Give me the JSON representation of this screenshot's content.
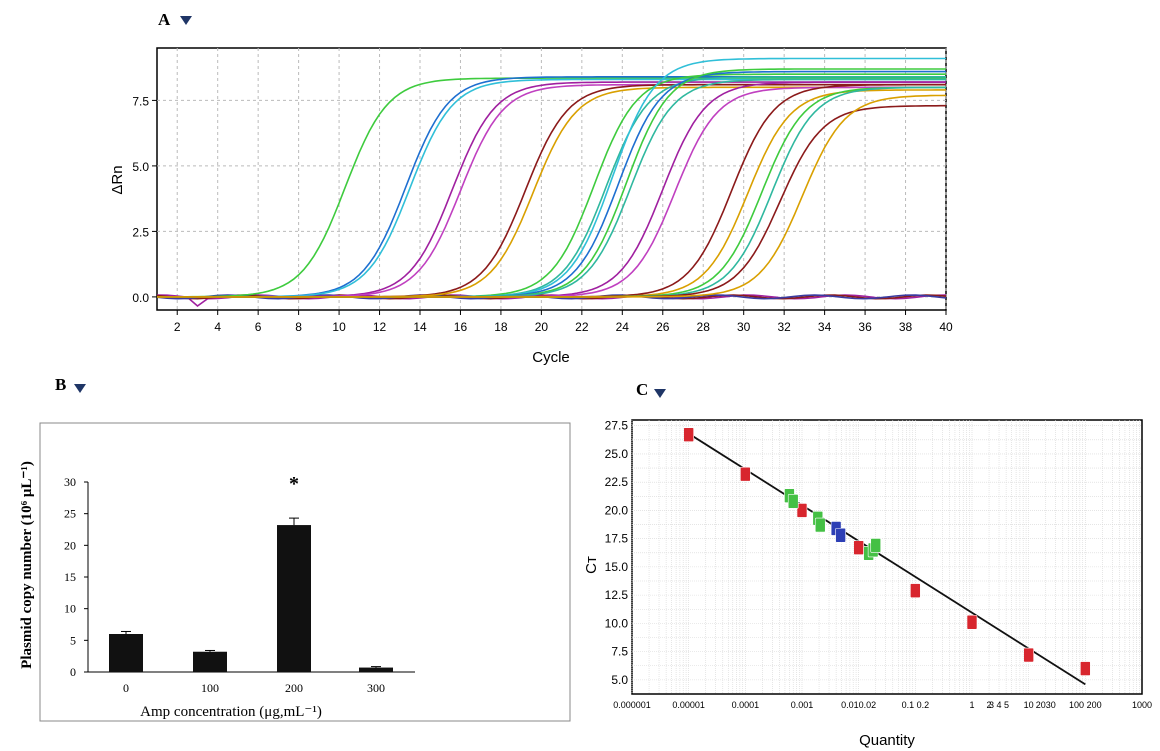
{
  "panel_labels": {
    "a": "A",
    "b": "B",
    "c": "C"
  },
  "colors": {
    "arrow": "#1f3566",
    "bar": "#111111",
    "fit_line": "#111111"
  },
  "chart_data": [
    {
      "id": "A",
      "type": "line",
      "xlabel": "Cycle",
      "ylabel": "ΔRn",
      "xlim": [
        1,
        40
      ],
      "ylim": [
        -0.5,
        9.5
      ],
      "x_ticks": [
        "2",
        "4",
        "6",
        "8",
        "10",
        "12",
        "14",
        "16",
        "18",
        "20",
        "22",
        "24",
        "26",
        "28",
        "30",
        "32",
        "34",
        "36",
        "38",
        "40"
      ],
      "y_ticks": [
        "0.0",
        "2.5",
        "5.0",
        "7.5"
      ],
      "grid": true,
      "series": [
        {
          "color": "#3ecb3e",
          "ct": 10.3,
          "plateau": 8.35
        },
        {
          "color": "#1e6fd0",
          "ct": 13.3,
          "plateau": 8.4
        },
        {
          "color": "#30bfd8",
          "ct": 13.5,
          "plateau": 8.3
        },
        {
          "color": "#a020a0",
          "ct": 15.6,
          "plateau": 8.2
        },
        {
          "color": "#c040c0",
          "ct": 16.0,
          "plateau": 8.1
        },
        {
          "color": "#8b1a1a",
          "ct": 19.2,
          "plateau": 8.1
        },
        {
          "color": "#d9a000",
          "ct": 19.6,
          "plateau": 8.0
        },
        {
          "color": "#3ecb3e",
          "ct": 22.6,
          "plateau": 8.5
        },
        {
          "color": "#2fb89f",
          "ct": 23.2,
          "plateau": 8.4
        },
        {
          "color": "#30bfd8",
          "ct": 23.5,
          "plateau": 9.1
        },
        {
          "color": "#1e6fd0",
          "ct": 23.8,
          "plateau": 8.6
        },
        {
          "color": "#3ecb3e",
          "ct": 24.2,
          "plateau": 8.7
        },
        {
          "color": "#2fb89f",
          "ct": 24.4,
          "plateau": 8.3
        },
        {
          "color": "#a020a0",
          "ct": 26.0,
          "plateau": 8.2
        },
        {
          "color": "#c040c0",
          "ct": 26.6,
          "plateau": 8.0
        },
        {
          "color": "#8b1a1a",
          "ct": 29.4,
          "plateau": 8.1
        },
        {
          "color": "#d9a000",
          "ct": 30.2,
          "plateau": 7.9
        },
        {
          "color": "#3ecb3e",
          "ct": 30.9,
          "plateau": 8.0
        },
        {
          "color": "#2fb89f",
          "ct": 31.4,
          "plateau": 8.0
        },
        {
          "color": "#8b1a1a",
          "ct": 31.8,
          "plateau": 7.3
        },
        {
          "color": "#d9a000",
          "ct": 32.9,
          "plateau": 7.7
        }
      ]
    },
    {
      "id": "B",
      "type": "bar",
      "xlabel": "Amp concentration  (μg,mL⁻¹)",
      "ylabel": "Plasmid copy number  (10⁶ μL⁻¹)",
      "categories": [
        "0",
        "100",
        "200",
        "300"
      ],
      "values": [
        6.0,
        3.2,
        23.2,
        0.7
      ],
      "errors": [
        0.4,
        0.2,
        1.1,
        0.15
      ],
      "significance": [
        "",
        "",
        "*",
        ""
      ],
      "ylim": [
        0,
        30
      ],
      "y_ticks": [
        "0",
        "5",
        "10",
        "15",
        "20",
        "25",
        "30"
      ]
    },
    {
      "id": "C",
      "type": "scatter",
      "xlabel": "Quantity",
      "ylabel": "Cт",
      "xscale": "log",
      "xlim": [
        1e-06,
        1000
      ],
      "ylim": [
        3.75,
        28
      ],
      "y_ticks": [
        "5.0",
        "7.5",
        "10.0",
        "12.5",
        "15.0",
        "17.5",
        "20.0",
        "22.5",
        "25.0",
        "27.5"
      ],
      "x_tick_labels": [
        {
          "v": 1e-06,
          "t": "0.000001"
        },
        {
          "v": 1e-05,
          "t": "0.00001"
        },
        {
          "v": 0.0001,
          "t": "0.0001"
        },
        {
          "v": 0.001,
          "t": "0.001"
        },
        {
          "v": 0.01,
          "t": "0.010.02"
        },
        {
          "v": 0.1,
          "t": "0.1  0.2"
        },
        {
          "v": 1,
          "t": "1"
        },
        {
          "v": 2,
          "t": "2"
        },
        {
          "v": 3,
          "t": "3 4 5"
        },
        {
          "v": 10,
          "t": "10"
        },
        {
          "v": 20,
          "t": "2030"
        },
        {
          "v": 100,
          "t": "100 200"
        },
        {
          "v": 1000,
          "t": "1000"
        }
      ],
      "grid": true,
      "fit_line": {
        "x": [
          1e-05,
          100
        ],
        "y": [
          26.8,
          4.6
        ]
      },
      "points": [
        {
          "x": 1e-05,
          "y": 26.7,
          "group": "standard",
          "color": "#d8262e"
        },
        {
          "x": 0.0001,
          "y": 23.2,
          "group": "standard",
          "color": "#d8262e"
        },
        {
          "x": 0.001,
          "y": 20.0,
          "group": "standard",
          "color": "#d8262e"
        },
        {
          "x": 0.01,
          "y": 16.7,
          "group": "standard",
          "color": "#d8262e"
        },
        {
          "x": 0.1,
          "y": 12.9,
          "group": "standard",
          "color": "#d8262e"
        },
        {
          "x": 1,
          "y": 10.1,
          "group": "standard",
          "color": "#d8262e"
        },
        {
          "x": 10,
          "y": 7.2,
          "group": "standard",
          "color": "#d8262e"
        },
        {
          "x": 100,
          "y": 6.0,
          "group": "standard",
          "color": "#d8262e"
        },
        {
          "x": 0.0006,
          "y": 21.3,
          "group": "unknown",
          "color": "#44c044"
        },
        {
          "x": 0.0007,
          "y": 20.8,
          "group": "unknown",
          "color": "#44c044"
        },
        {
          "x": 0.0019,
          "y": 19.3,
          "group": "unknown",
          "color": "#44c044"
        },
        {
          "x": 0.0021,
          "y": 18.7,
          "group": "unknown",
          "color": "#44c044"
        },
        {
          "x": 0.004,
          "y": 18.4,
          "group": "unknown",
          "color": "#2d3fb5"
        },
        {
          "x": 0.0048,
          "y": 17.8,
          "group": "unknown",
          "color": "#2d3fb5"
        },
        {
          "x": 0.015,
          "y": 16.2,
          "group": "unknown",
          "color": "#44c044"
        },
        {
          "x": 0.018,
          "y": 16.5,
          "group": "unknown",
          "color": "#44c044"
        },
        {
          "x": 0.02,
          "y": 16.9,
          "group": "unknown",
          "color": "#44c044"
        }
      ]
    }
  ]
}
